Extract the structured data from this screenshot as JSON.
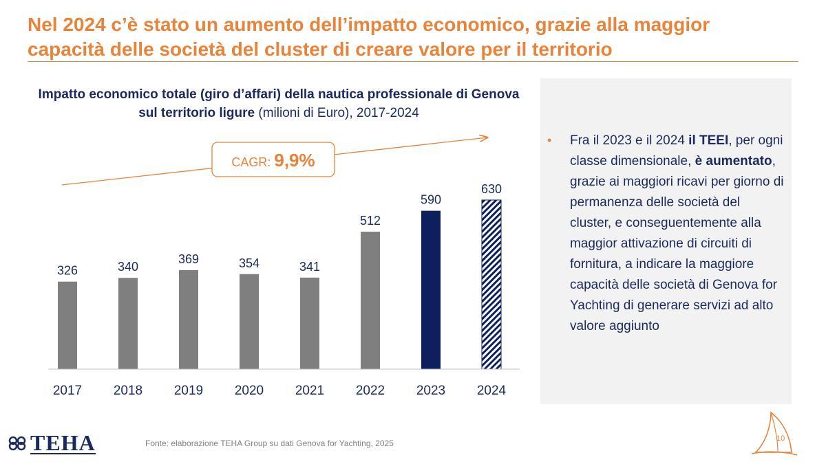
{
  "slide": {
    "title": "Nel 2024 c’è stato un aumento dell’impatto economico, grazie alla maggior capacità delle società del cluster di creare valore per il territorio",
    "page_number": "10",
    "source": "Fonte: elaborazione TEHA Group su dati Genova for Yachting, 2025",
    "logo_text": "TEHA"
  },
  "chart_title": {
    "bold_part": "Impatto economico totale (giro d’affari) della nautica professionale di Genova sul territorio ligure",
    "normal_part": " (milioni di Euro), 2017-2024"
  },
  "cagr": {
    "label": "CAGR:",
    "value": "9,9%"
  },
  "chart_data": {
    "type": "bar",
    "title": "Impatto economico totale (giro d’affari) della nautica professionale di Genova sul territorio ligure (milioni di Euro), 2017-2024",
    "categories": [
      "2017",
      "2018",
      "2019",
      "2020",
      "2021",
      "2022",
      "2023",
      "2024"
    ],
    "values": [
      326,
      340,
      369,
      354,
      341,
      512,
      590,
      630
    ],
    "data_labels": [
      "326",
      "340",
      "369",
      "354",
      "341",
      "512",
      "590",
      "630"
    ],
    "bar_styles": [
      "solid",
      "solid",
      "solid",
      "solid",
      "solid",
      "solid",
      "solid",
      "hatched"
    ],
    "bar_colors": [
      "#7F7F7F",
      "#7F7F7F",
      "#7F7F7F",
      "#7F7F7F",
      "#7F7F7F",
      "#7F7F7F",
      "#0D1F5C",
      "#0D1F5C"
    ],
    "ylim": [
      0,
      700
    ],
    "xlabel": "",
    "ylabel": "",
    "grid": false,
    "legend": "none",
    "accent_color": "#E8833A"
  },
  "panel": {
    "bullet": {
      "t1": "Fra il 2023 e il 2024 ",
      "b1": "il TEEI",
      "t2": ", per ogni classe dimensionale, ",
      "b2": "è aumentato",
      "t3": ", grazie ai maggiori ricavi per giorno di permanenza delle società del cluster, e conseguentemente alla maggior attivazione di circuiti di fornitura, a indicare la maggiore capacità delle società di Genova for Yachting di generare servizi ad alto valore aggiunto"
    }
  },
  "colors": {
    "accent": "#E8833A",
    "navy": "#1B2A5E",
    "bar_gray": "#7F7F7F",
    "bar_navy": "#0D1F5C",
    "panel_bg": "#F2F2F2"
  }
}
